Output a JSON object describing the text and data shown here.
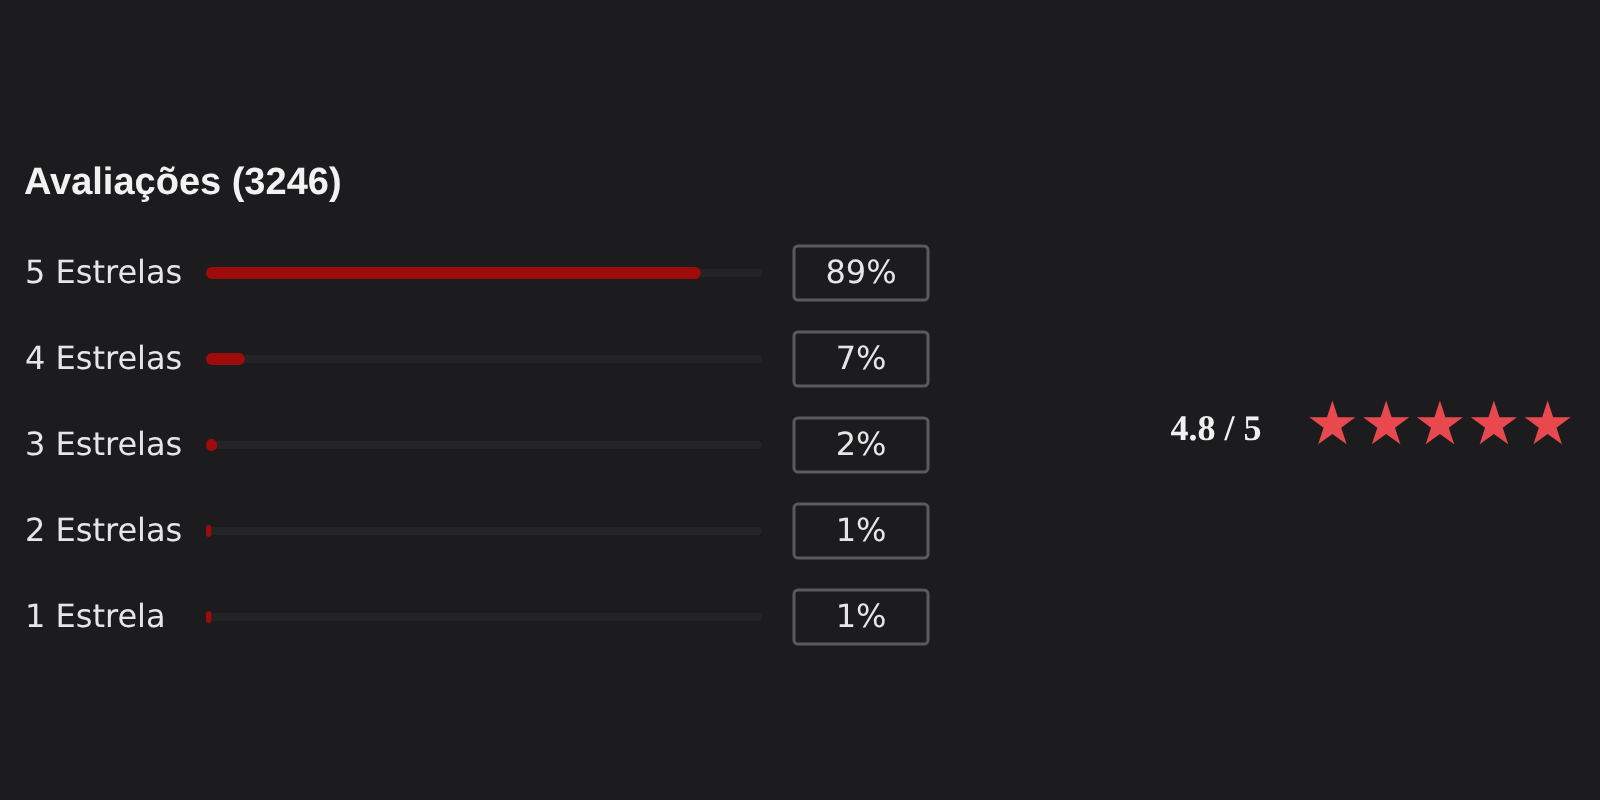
{
  "chart_data": {
    "type": "bar",
    "orientation": "horizontal",
    "title": "Avaliações (3246)",
    "categories": [
      "5 Estrelas",
      "4 Estrelas",
      "3 Estrelas",
      "2 Estrelas",
      "1 Estrela"
    ],
    "values": [
      89,
      7,
      2,
      1,
      1
    ],
    "color": "#9e0b0b",
    "value_labels": [
      "89%",
      "7%",
      "2%",
      "1%",
      "1%"
    ],
    "xlim": [
      0,
      100
    ],
    "tick_labels": "y",
    "annotations": [
      "4.8 / 5",
      "★★★★★"
    ]
  }
}
